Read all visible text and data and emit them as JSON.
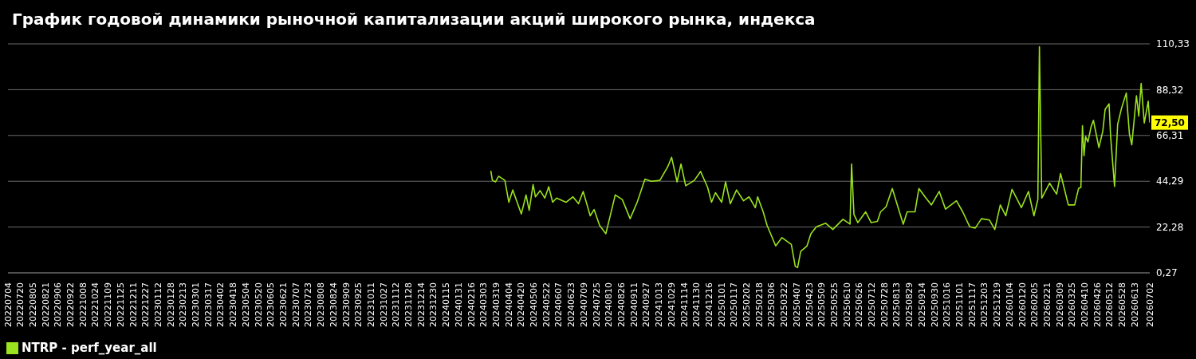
{
  "chart_data": {
    "type": "line",
    "title": "График годовой динамики рыночной капитализации акций широкого рынка, индекса",
    "x": [
      "2024-03-12",
      "2024-03-14",
      "2024-03-18",
      "2024-03-22",
      "2024-03-30",
      "2024-04-04",
      "2024-04-09",
      "2024-04-20",
      "2024-04-26",
      "2024-04-30",
      "2024-05-05",
      "2024-05-08",
      "2024-05-14",
      "2024-05-20",
      "2024-05-25",
      "2024-05-30",
      "2024-06-04",
      "2024-06-16",
      "2024-06-25",
      "2024-07-02",
      "2024-07-08",
      "2024-07-17",
      "2024-07-22",
      "2024-07-29",
      "2024-08-06",
      "2024-08-18",
      "2024-08-27",
      "2024-09-06",
      "2024-09-15",
      "2024-09-25",
      "2024-10-03",
      "2024-10-14",
      "2024-10-24",
      "2024-10-29",
      "2024-11-05",
      "2024-11-10",
      "2024-11-16",
      "2024-11-27",
      "2024-12-05",
      "2024-12-14",
      "2024-12-19",
      "2024-12-24",
      "2025-01-01",
      "2025-01-06",
      "2025-01-12",
      "2025-01-20",
      "2025-01-29",
      "2025-02-05",
      "2025-02-13",
      "2025-02-16",
      "2025-02-23",
      "2025-02-28",
      "2025-03-11",
      "2025-03-19",
      "2025-03-31",
      "2025-04-05",
      "2025-04-08",
      "2025-04-12",
      "2025-04-20",
      "2025-04-25",
      "2025-05-02",
      "2025-05-14",
      "2025-05-23",
      "2025-06-05",
      "2025-06-14",
      "2025-06-16",
      "2025-06-19",
      "2025-06-24",
      "2025-07-04",
      "2025-07-11",
      "2025-07-19",
      "2025-07-23",
      "2025-07-30",
      "2025-08-07",
      "2025-08-14",
      "2025-08-21",
      "2025-08-26",
      "2025-09-05",
      "2025-09-10",
      "2025-09-19",
      "2025-09-26",
      "2025-10-06",
      "2025-10-14",
      "2025-10-28",
      "2025-11-05",
      "2025-11-14",
      "2025-11-21",
      "2025-11-29",
      "2025-12-09",
      "2025-12-16",
      "2025-12-23",
      "2025-12-30",
      "2026-01-07",
      "2026-01-19",
      "2026-01-28",
      "2026-02-04",
      "2026-02-09",
      "2026-02-11",
      "2026-02-14",
      "2026-02-24",
      "2026-03-05",
      "2026-03-10",
      "2026-03-20",
      "2026-03-28",
      "2026-04-02",
      "2026-04-05",
      "2026-04-07",
      "2026-04-09",
      "2026-04-11",
      "2026-04-14",
      "2026-04-18",
      "2026-04-21",
      "2026-04-28",
      "2026-05-03",
      "2026-05-06",
      "2026-05-11",
      "2026-05-13",
      "2026-05-18",
      "2026-05-22",
      "2026-05-27",
      "2026-06-02",
      "2026-06-06",
      "2026-06-09",
      "2026-06-15",
      "2026-06-18",
      "2026-06-21",
      "2026-06-25",
      "2026-06-30",
      "2026-07-02"
    ],
    "series": [
      {
        "name": "NTRP - perf_year_all",
        "color": "#9be31e",
        "values": [
          49.3,
          44.7,
          44.0,
          46.7,
          44.7,
          34.2,
          40.1,
          28.6,
          37.7,
          30.3,
          42.7,
          36.8,
          39.8,
          36.2,
          41.7,
          34.2,
          36.2,
          34.2,
          36.8,
          33.5,
          39.4,
          27.7,
          30.7,
          23.1,
          19.1,
          37.7,
          35.5,
          26.3,
          34.2,
          45.3,
          44.3,
          44.7,
          51.2,
          55.8,
          44.0,
          52.6,
          42.1,
          44.7,
          49.0,
          41.4,
          34.2,
          38.8,
          34.2,
          44.0,
          33.5,
          40.1,
          34.9,
          36.8,
          31.6,
          36.8,
          29.6,
          23.1,
          13.2,
          17.2,
          13.9,
          3.4,
          2.8,
          10.6,
          13.2,
          19.1,
          22.4,
          24.1,
          21.1,
          26.0,
          23.7,
          52.6,
          28.3,
          24.4,
          29.6,
          24.4,
          25.0,
          29.6,
          32.0,
          40.8,
          32.2,
          23.7,
          29.6,
          29.6,
          40.8,
          36.2,
          32.9,
          39.4,
          30.9,
          34.9,
          29.6,
          22.4,
          21.8,
          26.3,
          25.7,
          21.1,
          32.9,
          27.7,
          40.4,
          31.6,
          39.4,
          27.7,
          35.5,
          109.0,
          36.2,
          43.4,
          38.1,
          48.0,
          32.9,
          32.9,
          40.8,
          41.4,
          71.0,
          56.6,
          65.8,
          63.2,
          70.4,
          73.6,
          60.5,
          68.4,
          78.9,
          81.5,
          65.8,
          41.8,
          71.7,
          79.5,
          86.7,
          67.1,
          61.8,
          85.4,
          75.6,
          91.3,
          72.3,
          82.8,
          72.5
        ]
      }
    ],
    "ylim": [
      0.27,
      110.33
    ],
    "yticks": [
      {
        "value": 0.27,
        "label": "0,27"
      },
      {
        "value": 22.28,
        "label": "22,28"
      },
      {
        "value": 44.29,
        "label": "44,29"
      },
      {
        "value": 66.31,
        "label": "66,31"
      },
      {
        "value": 88.32,
        "label": "88,32"
      },
      {
        "value": 110.33,
        "label": "110,33"
      }
    ],
    "xlim": [
      "2022-07-04",
      "2026-07-02"
    ],
    "xticks": [
      {
        "value": "2022-07-04",
        "label": "20220704"
      },
      {
        "value": "2022-07-20",
        "label": "20220720"
      },
      {
        "value": "2022-08-05",
        "label": "20220805"
      },
      {
        "value": "2022-08-21",
        "label": "20220821"
      },
      {
        "value": "2022-09-06",
        "label": "20220906"
      },
      {
        "value": "2022-09-22",
        "label": "20220922"
      },
      {
        "value": "2022-10-08",
        "label": "20221008"
      },
      {
        "value": "2022-10-24",
        "label": "20221024"
      },
      {
        "value": "2022-11-09",
        "label": "20221109"
      },
      {
        "value": "2022-11-25",
        "label": "20221125"
      },
      {
        "value": "2022-12-11",
        "label": "20221211"
      },
      {
        "value": "2022-12-27",
        "label": "20221227"
      },
      {
        "value": "2023-01-12",
        "label": "20230112"
      },
      {
        "value": "2023-01-28",
        "label": "20230128"
      },
      {
        "value": "2023-02-13",
        "label": "20230213"
      },
      {
        "value": "2023-03-01",
        "label": "20230301"
      },
      {
        "value": "2023-03-17",
        "label": "20230317"
      },
      {
        "value": "2023-04-02",
        "label": "20230402"
      },
      {
        "value": "2023-04-18",
        "label": "20230418"
      },
      {
        "value": "2023-05-04",
        "label": "20230504"
      },
      {
        "value": "2023-05-20",
        "label": "20230520"
      },
      {
        "value": "2023-06-05",
        "label": "20230605"
      },
      {
        "value": "2023-06-21",
        "label": "20230621"
      },
      {
        "value": "2023-07-07",
        "label": "20230707"
      },
      {
        "value": "2023-07-23",
        "label": "20230723"
      },
      {
        "value": "2023-08-08",
        "label": "20230808"
      },
      {
        "value": "2023-08-24",
        "label": "20230824"
      },
      {
        "value": "2023-09-09",
        "label": "20230909"
      },
      {
        "value": "2023-09-25",
        "label": "20230925"
      },
      {
        "value": "2023-10-11",
        "label": "20231011"
      },
      {
        "value": "2023-10-27",
        "label": "20231027"
      },
      {
        "value": "2023-11-12",
        "label": "20231112"
      },
      {
        "value": "2023-11-28",
        "label": "20231128"
      },
      {
        "value": "2023-12-14",
        "label": "20231214"
      },
      {
        "value": "2023-12-30",
        "label": "20231230"
      },
      {
        "value": "2024-01-15",
        "label": "20240115"
      },
      {
        "value": "2024-01-31",
        "label": "20240131"
      },
      {
        "value": "2024-02-16",
        "label": "20240216"
      },
      {
        "value": "2024-03-03",
        "label": "20240303"
      },
      {
        "value": "2024-03-19",
        "label": "20240319"
      },
      {
        "value": "2024-04-04",
        "label": "20240404"
      },
      {
        "value": "2024-04-20",
        "label": "20240420"
      },
      {
        "value": "2024-05-06",
        "label": "20240506"
      },
      {
        "value": "2024-05-22",
        "label": "20240522"
      },
      {
        "value": "2024-06-07",
        "label": "20240607"
      },
      {
        "value": "2024-06-23",
        "label": "20240623"
      },
      {
        "value": "2024-07-09",
        "label": "20240709"
      },
      {
        "value": "2024-07-25",
        "label": "20240725"
      },
      {
        "value": "2024-08-10",
        "label": "20240810"
      },
      {
        "value": "2024-08-26",
        "label": "20240826"
      },
      {
        "value": "2024-09-11",
        "label": "20240911"
      },
      {
        "value": "2024-09-27",
        "label": "20240927"
      },
      {
        "value": "2024-10-13",
        "label": "20241013"
      },
      {
        "value": "2024-10-29",
        "label": "20241029"
      },
      {
        "value": "2024-11-14",
        "label": "20241114"
      },
      {
        "value": "2024-11-30",
        "label": "20241130"
      },
      {
        "value": "2024-12-16",
        "label": "20241216"
      },
      {
        "value": "2025-01-01",
        "label": "20250101"
      },
      {
        "value": "2025-01-17",
        "label": "20250117"
      },
      {
        "value": "2025-02-02",
        "label": "20250202"
      },
      {
        "value": "2025-02-18",
        "label": "20250218"
      },
      {
        "value": "2025-03-06",
        "label": "20250306"
      },
      {
        "value": "2025-03-22",
        "label": "20250322"
      },
      {
        "value": "2025-04-07",
        "label": "20250407"
      },
      {
        "value": "2025-04-23",
        "label": "20250423"
      },
      {
        "value": "2025-05-09",
        "label": "20250509"
      },
      {
        "value": "2025-05-25",
        "label": "20250525"
      },
      {
        "value": "2025-06-10",
        "label": "20250610"
      },
      {
        "value": "2025-06-26",
        "label": "20250626"
      },
      {
        "value": "2025-07-12",
        "label": "20250712"
      },
      {
        "value": "2025-07-28",
        "label": "20250728"
      },
      {
        "value": "2025-08-13",
        "label": "20250813"
      },
      {
        "value": "2025-08-29",
        "label": "20250829"
      },
      {
        "value": "2025-09-14",
        "label": "20250914"
      },
      {
        "value": "2025-09-30",
        "label": "20250930"
      },
      {
        "value": "2025-10-16",
        "label": "20251016"
      },
      {
        "value": "2025-11-01",
        "label": "20251101"
      },
      {
        "value": "2025-11-17",
        "label": "20251117"
      },
      {
        "value": "2025-12-03",
        "label": "20251203"
      },
      {
        "value": "2025-12-19",
        "label": "20251219"
      },
      {
        "value": "2026-01-04",
        "label": "20260104"
      },
      {
        "value": "2026-01-20",
        "label": "20260120"
      },
      {
        "value": "2026-02-05",
        "label": "20260205"
      },
      {
        "value": "2026-02-21",
        "label": "20260221"
      },
      {
        "value": "2026-03-09",
        "label": "20260309"
      },
      {
        "value": "2026-03-25",
        "label": "20260325"
      },
      {
        "value": "2026-04-10",
        "label": "20260410"
      },
      {
        "value": "2026-04-26",
        "label": "20260426"
      },
      {
        "value": "2026-05-12",
        "label": "20260512"
      },
      {
        "value": "2026-05-28",
        "label": "20260528"
      },
      {
        "value": "2026-06-13",
        "label": "20260613"
      },
      {
        "value": "2026-07-02",
        "label": "20260702"
      }
    ],
    "annotations": [
      {
        "text": "72,50",
        "x": "2026-07-02",
        "y": 72.5
      }
    ],
    "grid": "y",
    "legend": "bottom left"
  }
}
